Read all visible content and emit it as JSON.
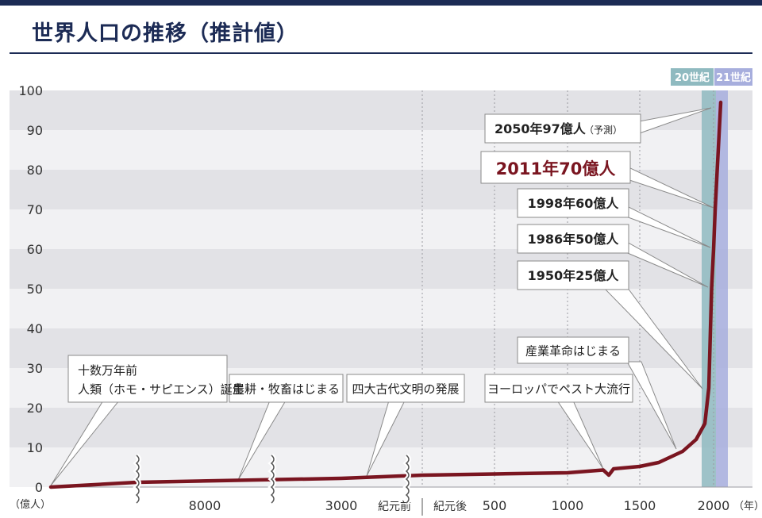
{
  "title": "世界人口の推移（推計値）",
  "chart_data": {
    "type": "line",
    "title": "世界人口の推移（推計値）",
    "ylabel": "（億人）",
    "xlabel": "（年）",
    "ylim": [
      0,
      100
    ],
    "y_ticks": [
      0,
      10,
      20,
      30,
      40,
      50,
      60,
      70,
      80,
      90,
      100
    ],
    "x_tick_labels": [
      "8000",
      "3000",
      "紀元前",
      "紀元後",
      "500",
      "1000",
      "1500",
      "2000"
    ],
    "century_bands": [
      "20世紀",
      "21世紀"
    ],
    "series": [
      {
        "color": "#7a1520",
        "points": [
          {
            "x": "十数万年前",
            "y": 0
          },
          {
            "x": "8000 BC",
            "y": 1.2
          },
          {
            "x": "3000 BC",
            "y": 2.2
          },
          {
            "x": "0",
            "y": 3.0
          },
          {
            "x": "500",
            "y": 3.3
          },
          {
            "x": "1000",
            "y": 3.6
          },
          {
            "x": "1300",
            "y": 4.3
          },
          {
            "x": "1340",
            "y": 3.0
          },
          {
            "x": "1370",
            "y": 4.6
          },
          {
            "x": "1500",
            "y": 5.2
          },
          {
            "x": "1650",
            "y": 6.2
          },
          {
            "x": "1750",
            "y": 9.0
          },
          {
            "x": "1850",
            "y": 12.0
          },
          {
            "x": "1900",
            "y": 16.0
          },
          {
            "x": "1950",
            "y": 25
          },
          {
            "x": "1986",
            "y": 50
          },
          {
            "x": "1998",
            "y": 60
          },
          {
            "x": "2011",
            "y": 70
          },
          {
            "x": "2050",
            "y": 97
          }
        ]
      }
    ],
    "annotations": [
      {
        "label": "2050年97億人",
        "sub": "（予測）"
      },
      {
        "label": "2011年70億人",
        "highlight": true
      },
      {
        "label": "1998年60億人"
      },
      {
        "label": "1986年50億人"
      },
      {
        "label": "1950年25億人"
      },
      {
        "label": "産業革命はじまる"
      },
      {
        "label": "ヨーロッパでペスト大流行"
      },
      {
        "label": "四大古代文明の発展"
      },
      {
        "label": "農耕・牧畜はじまる"
      },
      {
        "label": "十数万年前",
        "label2": "人類（ホモ・サピエンス）誕生"
      }
    ],
    "colors": {
      "line": "#7a1520",
      "band20": "#8fbac0",
      "band21": "#a7aedd",
      "title": "#1c2b55",
      "highlight_text": "#7a1520"
    }
  }
}
